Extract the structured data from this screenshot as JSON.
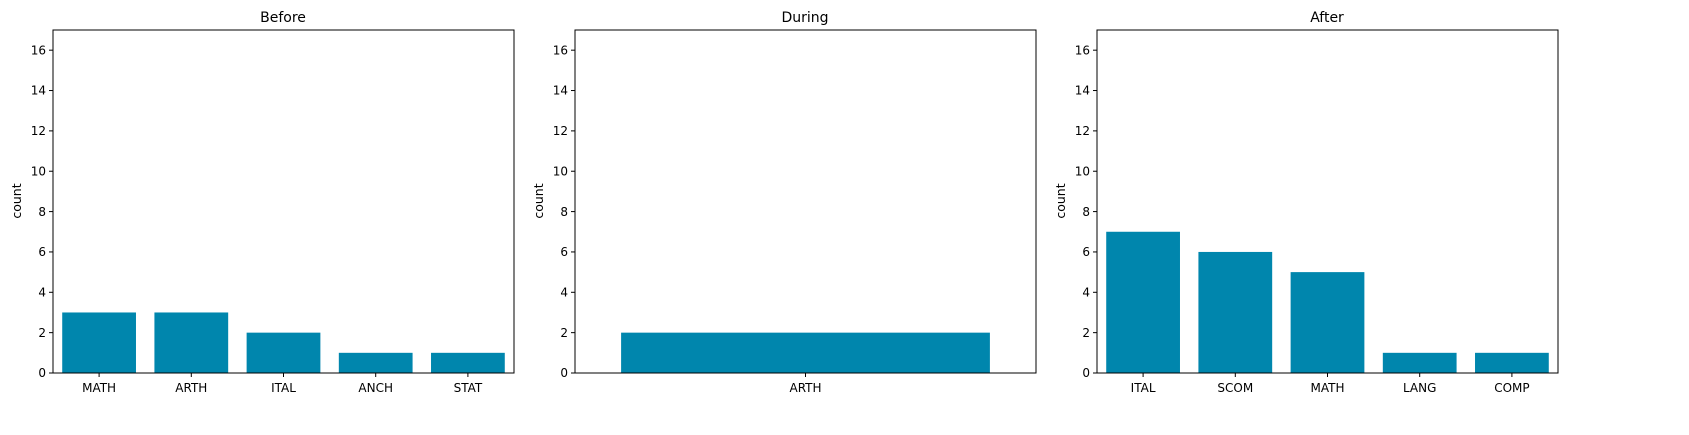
{
  "colors": {
    "bar": "#0086ad",
    "axis": "#000000",
    "background": "#ffffff"
  },
  "chart_data": [
    {
      "type": "bar",
      "title": "Before",
      "xlabel": "",
      "ylabel": "count",
      "ylim": [
        0,
        17
      ],
      "yticks": [
        0,
        2,
        4,
        6,
        8,
        10,
        12,
        14,
        16
      ],
      "categories": [
        "MATH",
        "ARTH",
        "ITAL",
        "ANCH",
        "STAT"
      ],
      "values": [
        3,
        3,
        2,
        1,
        1
      ],
      "grid": false
    },
    {
      "type": "bar",
      "title": "During",
      "xlabel": "",
      "ylabel": "count",
      "ylim": [
        0,
        17
      ],
      "yticks": [
        0,
        2,
        4,
        6,
        8,
        10,
        12,
        14,
        16
      ],
      "categories": [
        "ARTH"
      ],
      "values": [
        2
      ],
      "grid": false
    },
    {
      "type": "bar",
      "title": "After",
      "xlabel": "",
      "ylabel": "count",
      "ylim": [
        0,
        17
      ],
      "yticks": [
        0,
        2,
        4,
        6,
        8,
        10,
        12,
        14,
        16
      ],
      "categories": [
        "ITAL",
        "SCOM",
        "MATH",
        "LANG",
        "COMP"
      ],
      "values": [
        7,
        6,
        5,
        1,
        1
      ],
      "grid": false
    }
  ]
}
